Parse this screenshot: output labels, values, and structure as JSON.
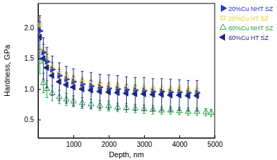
{
  "chart_data": {
    "type": "scatter",
    "x_label": "Depth, nm",
    "y_label": "Hardness, GPa",
    "xlim": [
      0,
      5000
    ],
    "ylim": [
      0.2,
      2.4
    ],
    "xticks": [
      1000,
      2000,
      3000,
      4000,
      5000
    ],
    "yticks": [
      0.5,
      {
        "value": 1,
        "label": "1.0"
      },
      1.5,
      {
        "value": 2,
        "label": "2.0"
      }
    ],
    "legend": "right",
    "grid": false,
    "series": [
      {
        "name": "20%Cu NHT SZ",
        "color": "#2233cc",
        "marker": "filled-triangle-right",
        "x": [
          50,
          150,
          250,
          400,
          600,
          800,
          1000,
          1250,
          1500,
          1750,
          2000,
          2250,
          2500,
          2750,
          3000,
          3250,
          3500,
          3750,
          4000,
          4250,
          4500
        ],
        "values": [
          1.95,
          1.6,
          1.45,
          1.32,
          1.22,
          1.16,
          1.12,
          1.08,
          1.05,
          1.03,
          1.01,
          1.0,
          0.99,
          0.98,
          0.97,
          0.96,
          0.96,
          0.95,
          0.95,
          0.94,
          0.94
        ],
        "errors": [
          0.15,
          0.13,
          0.12,
          0.11,
          0.1,
          0.1,
          0.09,
          0.09,
          0.09,
          0.08,
          0.08,
          0.08,
          0.08,
          0.08,
          0.07,
          0.07,
          0.07,
          0.07,
          0.07,
          0.07,
          0.07
        ]
      },
      {
        "name": "20%Cu HT SZ",
        "color": "#e8d020",
        "marker": "open-square",
        "x": [
          50,
          150,
          250,
          400,
          600,
          800,
          1000,
          1250,
          1500,
          1750,
          2000,
          2250,
          2500,
          2750,
          3000,
          3250,
          3500,
          3750,
          4000,
          4250,
          4500
        ],
        "values": [
          2.05,
          1.65,
          1.5,
          1.36,
          1.26,
          1.2,
          1.16,
          1.12,
          1.09,
          1.07,
          1.05,
          1.04,
          1.03,
          1.02,
          1.01,
          1.0,
          1.0,
          0.99,
          0.99,
          0.98,
          0.98
        ],
        "errors": [
          0.12,
          0.11,
          0.1,
          0.09,
          0.09,
          0.08,
          0.08,
          0.08,
          0.07,
          0.07,
          0.07,
          0.07,
          0.07,
          0.06,
          0.06,
          0.06,
          0.06,
          0.06,
          0.06,
          0.06,
          0.06
        ]
      },
      {
        "name": "60%Cu NHT SZ",
        "color": "#22a040",
        "marker": "open-triangle-up",
        "x": [
          50,
          150,
          250,
          400,
          600,
          800,
          1000,
          1250,
          1500,
          1750,
          2000,
          2250,
          2500,
          2750,
          3000,
          3250,
          3500,
          3750,
          4000,
          4250,
          4500,
          4750,
          4900
        ],
        "values": [
          1.45,
          1.1,
          1.0,
          0.93,
          0.87,
          0.83,
          0.8,
          0.77,
          0.75,
          0.73,
          0.72,
          0.7,
          0.69,
          0.68,
          0.67,
          0.66,
          0.65,
          0.65,
          0.64,
          0.63,
          0.63,
          0.62,
          0.61
        ],
        "errors": [
          0.2,
          0.16,
          0.14,
          0.12,
          0.11,
          0.1,
          0.09,
          0.09,
          0.08,
          0.08,
          0.08,
          0.07,
          0.07,
          0.07,
          0.07,
          0.07,
          0.06,
          0.06,
          0.06,
          0.06,
          0.06,
          0.06,
          0.06
        ]
      },
      {
        "name": "60%Cu HT SZ",
        "color": "#1a2a80",
        "marker": "filled-triangle-left",
        "x": [
          50,
          150,
          250,
          400,
          600,
          800,
          1000,
          1250,
          1500,
          1750,
          2000,
          2250,
          2500,
          2750,
          3000,
          3250,
          3500,
          3750,
          4000,
          4250,
          4500
        ],
        "values": [
          1.85,
          1.5,
          1.35,
          1.22,
          1.12,
          1.07,
          1.03,
          1.0,
          0.98,
          0.96,
          0.95,
          0.94,
          0.93,
          0.92,
          0.92,
          0.91,
          0.91,
          0.9,
          0.9,
          0.89,
          0.89
        ],
        "errors": [
          0.35,
          0.34,
          0.33,
          0.32,
          0.31,
          0.3,
          0.3,
          0.29,
          0.29,
          0.28,
          0.28,
          0.28,
          0.27,
          0.27,
          0.27,
          0.26,
          0.26,
          0.26,
          0.25,
          0.25,
          0.25
        ]
      }
    ]
  }
}
